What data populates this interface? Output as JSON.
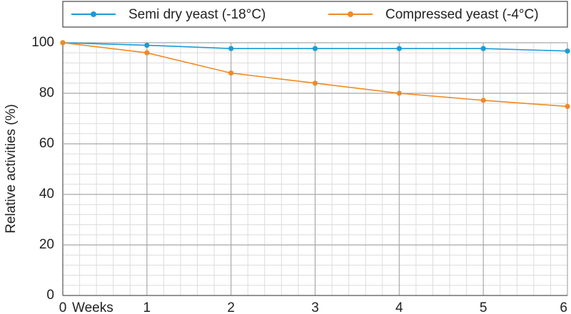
{
  "chart_data": {
    "type": "line",
    "x_label": "Weeks",
    "y_label": "Relative activities (%)",
    "x": [
      0,
      1,
      2,
      3,
      4,
      5,
      6
    ],
    "series": [
      {
        "name": "Semi dry yeast (-18°C)",
        "color": "#1b9ad8",
        "values": [
          100,
          99,
          97.7,
          97.7,
          97.7,
          97.7,
          96.7
        ]
      },
      {
        "name": "Compressed yeast (-4°C)",
        "color": "#f08a24",
        "values": [
          100,
          96,
          88,
          84,
          80,
          77.2,
          74.8
        ]
      }
    ],
    "xlim": [
      0,
      6
    ],
    "xticks": [
      0,
      1,
      2,
      3,
      4,
      5,
      6
    ],
    "ylim": [
      0,
      100
    ],
    "yticks": [
      0,
      20,
      40,
      60,
      80,
      100
    ],
    "grid": true,
    "legend": "top"
  }
}
